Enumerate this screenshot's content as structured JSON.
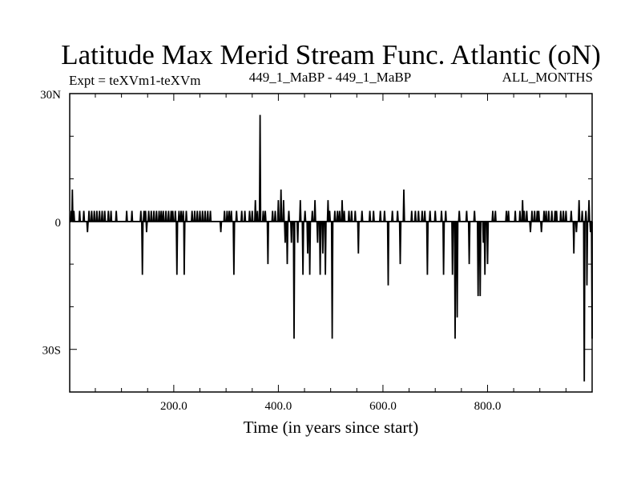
{
  "chart_data": {
    "type": "line",
    "title": "Latitude Max Merid Stream Func. Atlantic (oN)",
    "subtitle_left": "Expt = teXVm1-teXVm",
    "subtitle_center": "449_1_MaBP - 449_1_MaBP",
    "subtitle_right": "ALL_MONTHS",
    "xlabel": "Time (in years since start)",
    "ylabel": "",
    "xlim": [
      1,
      1000
    ],
    "ylim": [
      -40,
      30
    ],
    "xticks": [
      {
        "value": 200,
        "label": "200.0"
      },
      {
        "value": 400,
        "label": "400.0"
      },
      {
        "value": 600,
        "label": "600.0"
      },
      {
        "value": 800,
        "label": "800.0"
      }
    ],
    "yticks": [
      {
        "value": 30,
        "label": "30N"
      },
      {
        "value": 0,
        "label": "0"
      },
      {
        "value": -30,
        "label": "30S"
      }
    ],
    "series": [
      {
        "name": "latitude_max",
        "baseline": 0,
        "spikes": [
          [
            4,
            2.5
          ],
          [
            6,
            7.5
          ],
          [
            9,
            2.5
          ],
          [
            20,
            2.5
          ],
          [
            28,
            2.5
          ],
          [
            35,
            -2.5
          ],
          [
            38,
            2.5
          ],
          [
            43,
            2.5
          ],
          [
            48,
            2.5
          ],
          [
            53,
            2.5
          ],
          [
            58,
            2.5
          ],
          [
            63,
            2.5
          ],
          [
            68,
            2.5
          ],
          [
            75,
            2.5
          ],
          [
            80,
            2.5
          ],
          [
            90,
            2.5
          ],
          [
            110,
            2.5
          ],
          [
            120,
            2.5
          ],
          [
            137,
            2.5
          ],
          [
            140,
            -12.5
          ],
          [
            143,
            2.5
          ],
          [
            146,
            2.5
          ],
          [
            148,
            -2.5
          ],
          [
            152,
            2.5
          ],
          [
            157,
            2.5
          ],
          [
            162,
            2.5
          ],
          [
            167,
            2.5
          ],
          [
            172,
            2.5
          ],
          [
            176,
            2.5
          ],
          [
            180,
            2.5
          ],
          [
            185,
            2.5
          ],
          [
            190,
            2.5
          ],
          [
            195,
            2.5
          ],
          [
            198,
            2.5
          ],
          [
            203,
            2.5
          ],
          [
            206,
            -12.5
          ],
          [
            210,
            2.5
          ],
          [
            214,
            2.5
          ],
          [
            218,
            2.5
          ],
          [
            220,
            -12.5
          ],
          [
            224,
            2.5
          ],
          [
            235,
            2.5
          ],
          [
            240,
            2.5
          ],
          [
            245,
            2.5
          ],
          [
            250,
            2.5
          ],
          [
            255,
            2.5
          ],
          [
            260,
            2.5
          ],
          [
            265,
            2.5
          ],
          [
            270,
            2.5
          ],
          [
            290,
            -2.5
          ],
          [
            297,
            2.5
          ],
          [
            302,
            2.5
          ],
          [
            306,
            2.5
          ],
          [
            310,
            2.5
          ],
          [
            315,
            -12.5
          ],
          [
            320,
            2.5
          ],
          [
            330,
            2.5
          ],
          [
            336,
            2.5
          ],
          [
            345,
            2.5
          ],
          [
            350,
            2.5
          ],
          [
            356,
            5
          ],
          [
            360,
            2.5
          ],
          [
            365,
            25
          ],
          [
            371,
            2.5
          ],
          [
            375,
            2.5
          ],
          [
            380,
            -10
          ],
          [
            389,
            2.5
          ],
          [
            394,
            2.5
          ],
          [
            400,
            5
          ],
          [
            405,
            7.5
          ],
          [
            410,
            5
          ],
          [
            413,
            -5
          ],
          [
            417,
            -10
          ],
          [
            420,
            2.5
          ],
          [
            425,
            -5
          ],
          [
            430,
            -27.5
          ],
          [
            437,
            -5
          ],
          [
            442,
            5
          ],
          [
            447,
            -12.5
          ],
          [
            451,
            2.5
          ],
          [
            456,
            -7.5
          ],
          [
            460,
            -12.5
          ],
          [
            465,
            2.5
          ],
          [
            470,
            5
          ],
          [
            475,
            -5
          ],
          [
            480,
            -12.5
          ],
          [
            485,
            -7.5
          ],
          [
            490,
            -12.5
          ],
          [
            495,
            5
          ],
          [
            498,
            2.5
          ],
          [
            503,
            -27.5
          ],
          [
            508,
            2.5
          ],
          [
            513,
            2.5
          ],
          [
            517,
            2.5
          ],
          [
            522,
            5
          ],
          [
            526,
            2.5
          ],
          [
            535,
            2.5
          ],
          [
            540,
            2.5
          ],
          [
            547,
            2.5
          ],
          [
            553,
            -7.5
          ],
          [
            560,
            2.5
          ],
          [
            575,
            2.5
          ],
          [
            582,
            2.5
          ],
          [
            595,
            2.5
          ],
          [
            603,
            2.5
          ],
          [
            610,
            -15
          ],
          [
            618,
            2.5
          ],
          [
            628,
            2.5
          ],
          [
            633,
            -10
          ],
          [
            640,
            7.5
          ],
          [
            655,
            2.5
          ],
          [
            662,
            2.5
          ],
          [
            668,
            2.5
          ],
          [
            675,
            2.5
          ],
          [
            680,
            2.5
          ],
          [
            685,
            -12.5
          ],
          [
            690,
            2.5
          ],
          [
            700,
            2.5
          ],
          [
            712,
            2.5
          ],
          [
            716,
            -12.5
          ],
          [
            720,
            2.5
          ],
          [
            733,
            -12.5
          ],
          [
            738,
            -27.5
          ],
          [
            742,
            -22.5
          ],
          [
            746,
            2.5
          ],
          [
            760,
            2.5
          ],
          [
            765,
            -10
          ],
          [
            775,
            2.5
          ],
          [
            782,
            -17.5
          ],
          [
            786,
            -17.5
          ],
          [
            792,
            -5
          ],
          [
            795,
            -12.5
          ],
          [
            800,
            -10
          ],
          [
            810,
            2.5
          ],
          [
            815,
            2.5
          ],
          [
            836,
            2.5
          ],
          [
            840,
            2.5
          ],
          [
            853,
            2.5
          ],
          [
            862,
            2.5
          ],
          [
            867,
            5
          ],
          [
            870,
            2.5
          ],
          [
            875,
            2.5
          ],
          [
            882,
            -2.5
          ],
          [
            885,
            2.5
          ],
          [
            890,
            2.5
          ],
          [
            895,
            2.5
          ],
          [
            898,
            2.5
          ],
          [
            903,
            -2.5
          ],
          [
            908,
            2.5
          ],
          [
            912,
            2.5
          ],
          [
            917,
            2.5
          ],
          [
            923,
            2.5
          ],
          [
            929,
            2.5
          ],
          [
            932,
            2.5
          ],
          [
            940,
            2.5
          ],
          [
            945,
            2.5
          ],
          [
            950,
            2.5
          ],
          [
            960,
            2.5
          ],
          [
            965,
            -7.5
          ],
          [
            970,
            -2.5
          ],
          [
            975,
            5
          ],
          [
            981,
            2.5
          ],
          [
            985,
            -37.5
          ],
          [
            988,
            2.5
          ],
          [
            990,
            -15
          ],
          [
            994,
            5
          ],
          [
            997,
            -2.5
          ],
          [
            1000,
            -27.5
          ]
        ]
      }
    ]
  }
}
